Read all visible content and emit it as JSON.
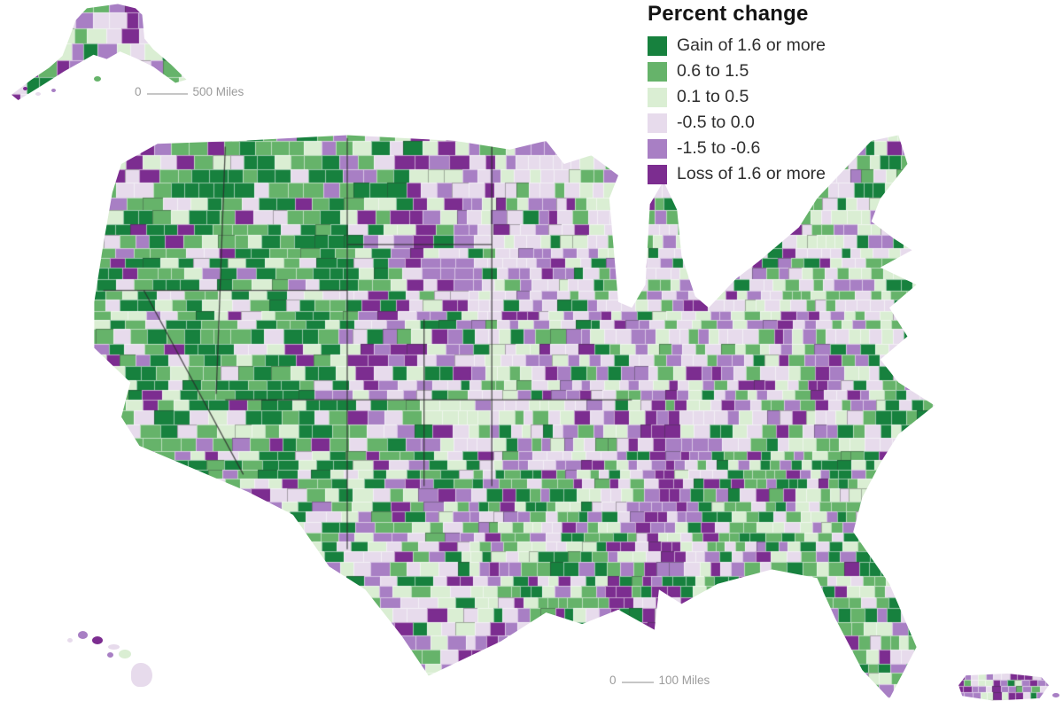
{
  "legend": {
    "title": "Percent change",
    "items": [
      {
        "label": "Gain of 1.6 or more",
        "color": "#17813e"
      },
      {
        "label": "0.6 to 1.5",
        "color": "#66b36a"
      },
      {
        "label": "0.1 to 0.5",
        "color": "#daeed3"
      },
      {
        "label": "-0.5 to 0.0",
        "color": "#e7dbec"
      },
      {
        "label": "-1.5 to -0.6",
        "color": "#a87fc4"
      },
      {
        "label": "Loss of 1.6 or more",
        "color": "#7c2d90"
      }
    ]
  },
  "scale_bars": {
    "alaska": {
      "zero": "0",
      "distance": "500 Miles"
    },
    "main": {
      "zero": "0",
      "distance": "100 Miles"
    }
  },
  "map_style": {
    "county_border_color": "#ffffff",
    "state_border_color": "#2a2a2a",
    "background": "#ffffff"
  }
}
